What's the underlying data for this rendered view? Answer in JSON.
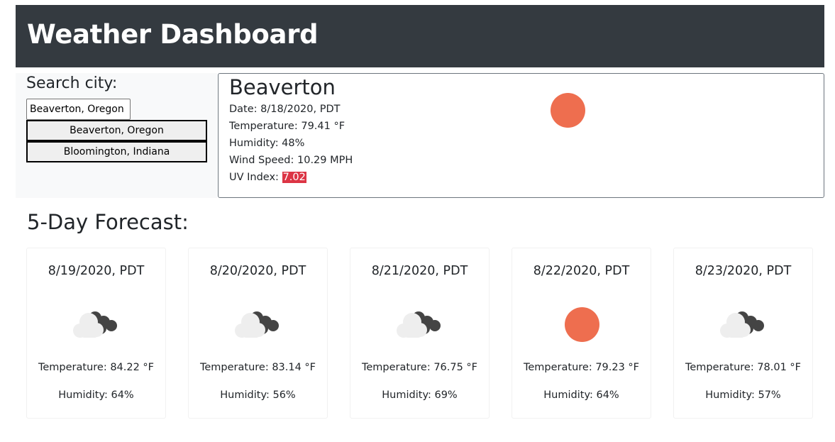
{
  "header": {
    "title": "Weather Dashboard"
  },
  "search": {
    "title": "Search city:",
    "input_value": "Beaverton, Oregon",
    "history": [
      "Beaverton, Oregon",
      "Bloomington, Indiana"
    ]
  },
  "current": {
    "city": "Beaverton",
    "icon": "sun-icon",
    "date": "Date: 8/18/2020, PDT",
    "temperature": "Temperature: 79.41 °F",
    "humidity": "Humidity: 48%",
    "wind": "Wind Speed: 10.29 MPH",
    "uv_label": "UV Index: ",
    "uv_value": "7.02",
    "uv_color": "#dc3545"
  },
  "forecast": {
    "title": "5-Day Forecast:",
    "days": [
      {
        "date": "8/19/2020, PDT",
        "icon": "cloud-icon",
        "temperature": "Temperature: 84.22 °F",
        "humidity": "Humidity: 64%"
      },
      {
        "date": "8/20/2020, PDT",
        "icon": "cloud-icon",
        "temperature": "Temperature: 83.14 °F",
        "humidity": "Humidity: 56%"
      },
      {
        "date": "8/21/2020, PDT",
        "icon": "cloud-icon",
        "temperature": "Temperature: 76.75 °F",
        "humidity": "Humidity: 69%"
      },
      {
        "date": "8/22/2020, PDT",
        "icon": "sun-icon",
        "temperature": "Temperature: 79.23 °F",
        "humidity": "Humidity: 64%"
      },
      {
        "date": "8/23/2020, PDT",
        "icon": "cloud-icon",
        "temperature": "Temperature: 78.01 °F",
        "humidity": "Humidity: 57%"
      }
    ]
  },
  "colors": {
    "header_bg": "#343a40",
    "sun": "#ee6e4f",
    "cloud_light": "#eeeeee",
    "cloud_dark": "#444444"
  }
}
